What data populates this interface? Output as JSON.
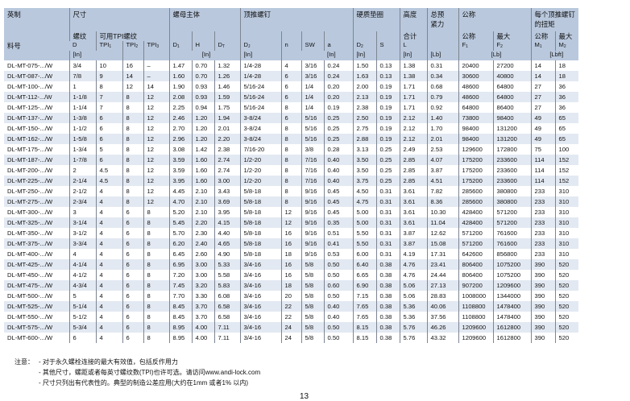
{
  "header": {
    "group": {
      "imperial": "英制",
      "size": "尺寸",
      "nut_body": "螺母主体",
      "jack_bolt": "顶推螺钉",
      "washer": "硬质垫圈",
      "height": "高度",
      "preload": "总预紧力",
      "nominal_group": "公称",
      "torque": "每个顶推螺钉的扭矩"
    },
    "sub": {
      "part_no": "料号",
      "thread": "螺纹",
      "tpi_avail": "可用TPI螺纹",
      "total": "合计",
      "nominal": "公称",
      "max": "最大",
      "nominal2": "公称",
      "max2": "最大"
    },
    "symbols": [
      {
        "main": "D",
        "sub": ""
      },
      {
        "main": "TPI",
        "sub": "1"
      },
      {
        "main": "TPI",
        "sub": "2"
      },
      {
        "main": "TPI",
        "sub": "3"
      },
      {
        "main": "D",
        "sub": "1"
      },
      {
        "main": "H",
        "sub": ""
      },
      {
        "main": "D",
        "sub": "T"
      },
      {
        "main": "D",
        "sub": "J"
      },
      {
        "main": "n",
        "sub": ""
      },
      {
        "main": "SW",
        "sub": ""
      },
      {
        "main": "a",
        "sub": ""
      },
      {
        "main": "D",
        "sub": "2"
      },
      {
        "main": "S",
        "sub": ""
      },
      {
        "main": "L",
        "sub": ""
      },
      {
        "main": "",
        "sub": ""
      },
      {
        "main": "F",
        "sub": "1"
      },
      {
        "main": "F",
        "sub": "2"
      },
      {
        "main": "M",
        "sub": "1"
      },
      {
        "main": "M",
        "sub": "2"
      }
    ],
    "units": {
      "in": "[In]",
      "lb": "[Lb]",
      "lbft": "[Lbft]"
    }
  },
  "rows": [
    [
      "DL-MT-075-.../W",
      "3/4",
      "10",
      "16",
      "–",
      "1.47",
      "0.70",
      "1.32",
      "1/4-28",
      "4",
      "3/16",
      "0.24",
      "1.50",
      "0.13",
      "1.38",
      "0.31",
      "20400",
      "27200",
      "14",
      "18"
    ],
    [
      "DL-MT-087-.../W",
      "7/8",
      "9",
      "14",
      "–",
      "1.60",
      "0.70",
      "1.26",
      "1/4-28",
      "6",
      "3/16",
      "0.24",
      "1.63",
      "0.13",
      "1.38",
      "0.34",
      "30600",
      "40800",
      "14",
      "18"
    ],
    [
      "DL-MT-100-.../W",
      "1",
      "8",
      "12",
      "14",
      "1.90",
      "0.93",
      "1.46",
      "5/16-24",
      "6",
      "1/4",
      "0.20",
      "2.00",
      "0.19",
      "1.71",
      "0.68",
      "48600",
      "64800",
      "27",
      "36"
    ],
    [
      "DL-MT-112-.../W",
      "1-1/8",
      "7",
      "8",
      "12",
      "2.08",
      "0.93",
      "1.59",
      "5/16-24",
      "6",
      "1/4",
      "0.20",
      "2.13",
      "0.19",
      "1.71",
      "0.79",
      "48600",
      "64800",
      "27",
      "36"
    ],
    [
      "DL-MT-125-.../W",
      "1-1/4",
      "7",
      "8",
      "12",
      "2.25",
      "0.94",
      "1.75",
      "5/16-24",
      "8",
      "1/4",
      "0.19",
      "2.38",
      "0.19",
      "1.71",
      "0.92",
      "64800",
      "86400",
      "27",
      "36"
    ],
    [
      "DL-MT-137-.../W",
      "1-3/8",
      "6",
      "8",
      "12",
      "2.46",
      "1.20",
      "1.94",
      "3-8/24",
      "6",
      "5/16",
      "0.25",
      "2.50",
      "0.19",
      "2.12",
      "1.40",
      "73800",
      "98400",
      "49",
      "65"
    ],
    [
      "DL-MT-150-.../W",
      "1-1/2",
      "6",
      "8",
      "12",
      "2.70",
      "1.20",
      "2.01",
      "3-8/24",
      "8",
      "5/16",
      "0.25",
      "2.75",
      "0.19",
      "2.12",
      "1.70",
      "98400",
      "131200",
      "49",
      "65"
    ],
    [
      "DL-MT-162-.../W",
      "1-5/8",
      "6",
      "8",
      "12",
      "2.96",
      "1.20",
      "2.20",
      "3-8/24",
      "8",
      "5/16",
      "0.25",
      "2.88",
      "0.19",
      "2.12",
      "2.01",
      "98400",
      "131200",
      "49",
      "65"
    ],
    [
      "DL-MT-175-.../W",
      "1-3/4",
      "5",
      "8",
      "12",
      "3.08",
      "1.42",
      "2.38",
      "7/16-20",
      "8",
      "3/8",
      "0.28",
      "3.13",
      "0.25",
      "2.49",
      "2.53",
      "129600",
      "172800",
      "75",
      "100"
    ],
    [
      "DL-MT-187-.../W",
      "1-7/8",
      "6",
      "8",
      "12",
      "3.59",
      "1.60",
      "2.74",
      "1/2-20",
      "8",
      "7/16",
      "0.40",
      "3.50",
      "0.25",
      "2.85",
      "4.07",
      "175200",
      "233600",
      "114",
      "152"
    ],
    [
      "DL-MT-200-.../W",
      "2",
      "4.5",
      "8",
      "12",
      "3.59",
      "1.60",
      "2.74",
      "1/2-20",
      "8",
      "7/16",
      "0.40",
      "3.50",
      "0.25",
      "2.85",
      "3.87",
      "175200",
      "233600",
      "114",
      "152"
    ],
    [
      "DL-MT-225-.../W",
      "2-1/4",
      "4.5",
      "8",
      "12",
      "3.95",
      "1.60",
      "3.00",
      "1/2-20",
      "8",
      "7/16",
      "0.40",
      "3.75",
      "0.25",
      "2.85",
      "4.51",
      "175200",
      "233600",
      "114",
      "152"
    ],
    [
      "DL-MT-250-.../W",
      "2-1/2",
      "4",
      "8",
      "12",
      "4.45",
      "2.10",
      "3.43",
      "5/8-18",
      "8",
      "9/16",
      "0.45",
      "4.50",
      "0.31",
      "3.61",
      "7.82",
      "285600",
      "380800",
      "233",
      "310"
    ],
    [
      "DL-MT-275-.../W",
      "2-3/4",
      "4",
      "8",
      "12",
      "4.70",
      "2.10",
      "3.69",
      "5/8-18",
      "8",
      "9/16",
      "0.45",
      "4.75",
      "0.31",
      "3.61",
      "8.36",
      "285600",
      "380800",
      "233",
      "310"
    ],
    [
      "DL-MT-300-.../W",
      "3",
      "4",
      "6",
      "8",
      "5.20",
      "2.10",
      "3.95",
      "5/8-18",
      "12",
      "9/16",
      "0.45",
      "5.00",
      "0.31",
      "3.61",
      "10.30",
      "428400",
      "571200",
      "233",
      "310"
    ],
    [
      "DL-MT-325-.../W",
      "3-1/4",
      "4",
      "6",
      "8",
      "5.45",
      "2.20",
      "4.15",
      "5/8-18",
      "12",
      "9/16",
      "0.35",
      "5.00",
      "0.31",
      "3.61",
      "11.04",
      "428400",
      "571200",
      "233",
      "310"
    ],
    [
      "DL-MT-350-.../W",
      "3-1/2",
      "4",
      "6",
      "8",
      "5.70",
      "2.30",
      "4.40",
      "5/8-18",
      "16",
      "9/16",
      "0.51",
      "5.50",
      "0.31",
      "3.87",
      "12.62",
      "571200",
      "761600",
      "233",
      "310"
    ],
    [
      "DL-MT-375-.../W",
      "3-3/4",
      "4",
      "6",
      "8",
      "6.20",
      "2.40",
      "4.65",
      "5/8-18",
      "16",
      "9/16",
      "0.41",
      "5.50",
      "0.31",
      "3.87",
      "15.08",
      "571200",
      "761600",
      "233",
      "310"
    ],
    [
      "DL-MT-400-.../W",
      "4",
      "4",
      "6",
      "8",
      "6.45",
      "2.60",
      "4.90",
      "5/8-18",
      "18",
      "9/16",
      "0.53",
      "6.00",
      "0.31",
      "4.19",
      "17.31",
      "642600",
      "856800",
      "233",
      "310"
    ],
    [
      "DL-MT-425-.../W",
      "4-1/4",
      "4",
      "6",
      "8",
      "6.95",
      "3.00",
      "5.33",
      "3/4-16",
      "16",
      "5/8",
      "0.50",
      "6.40",
      "0.38",
      "4.76",
      "23.41",
      "806400",
      "1075200",
      "390",
      "520"
    ],
    [
      "DL-MT-450-.../W",
      "4-1/2",
      "4",
      "6",
      "8",
      "7.20",
      "3.00",
      "5.58",
      "3/4-16",
      "16",
      "5/8",
      "0.50",
      "6.65",
      "0.38",
      "4.76",
      "24.44",
      "806400",
      "1075200",
      "390",
      "520"
    ],
    [
      "DL-MT-475-.../W",
      "4-3/4",
      "4",
      "6",
      "8",
      "7.45",
      "3.20",
      "5.83",
      "3/4-16",
      "18",
      "5/8",
      "0.60",
      "6.90",
      "0.38",
      "5.06",
      "27.13",
      "907200",
      "1209600",
      "390",
      "520"
    ],
    [
      "DL-MT-500-.../W",
      "5",
      "4",
      "6",
      "8",
      "7.70",
      "3.30",
      "6.08",
      "3/4-16",
      "20",
      "5/8",
      "0.50",
      "7.15",
      "0.38",
      "5.06",
      "28.83",
      "1008000",
      "1344000",
      "390",
      "520"
    ],
    [
      "DL-MT-525-.../W",
      "5-1/4",
      "4",
      "6",
      "8",
      "8.45",
      "3.70",
      "6.58",
      "3/4-16",
      "22",
      "5/8",
      "0.40",
      "7.65",
      "0.38",
      "5.36",
      "40.06",
      "1108800",
      "1478400",
      "390",
      "520"
    ],
    [
      "DL-MT-550-.../W",
      "5-1/2",
      "4",
      "6",
      "8",
      "8.45",
      "3.70",
      "6.58",
      "3/4-16",
      "22",
      "5/8",
      "0.40",
      "7.65",
      "0.38",
      "5.36",
      "37.56",
      "1108800",
      "1478400",
      "390",
      "520"
    ],
    [
      "DL-MT-575-.../W",
      "5-3/4",
      "4",
      "6",
      "8",
      "8.95",
      "4.00",
      "7.11",
      "3/4-16",
      "24",
      "5/8",
      "0.50",
      "8.15",
      "0.38",
      "5.76",
      "46.26",
      "1209600",
      "1612800",
      "390",
      "520"
    ],
    [
      "DL-MT-600-.../W",
      "6",
      "4",
      "6",
      "8",
      "8.95",
      "4.00",
      "7.11",
      "3/4-16",
      "24",
      "5/8",
      "0.50",
      "8.15",
      "0.38",
      "5.76",
      "43.32",
      "1209600",
      "1612800",
      "390",
      "520"
    ]
  ],
  "notes": {
    "label": "注意：",
    "items": [
      "- 对于永久螺栓连接的最大有效值，包括反作用力",
      "- 其他尺寸，螺距或者每英寸螺纹数(TPI)也许可选。请访问www.andi-lock.com",
      "- 尺寸只列出有代表性的。典型的制造公差应用(大约在1mm  或者1% 以内)"
    ]
  },
  "page_number": "13",
  "colors": {
    "header_bg": "#b9c8dd",
    "stripe_bg": "#e3e9f2",
    "border": "#7d8592"
  }
}
